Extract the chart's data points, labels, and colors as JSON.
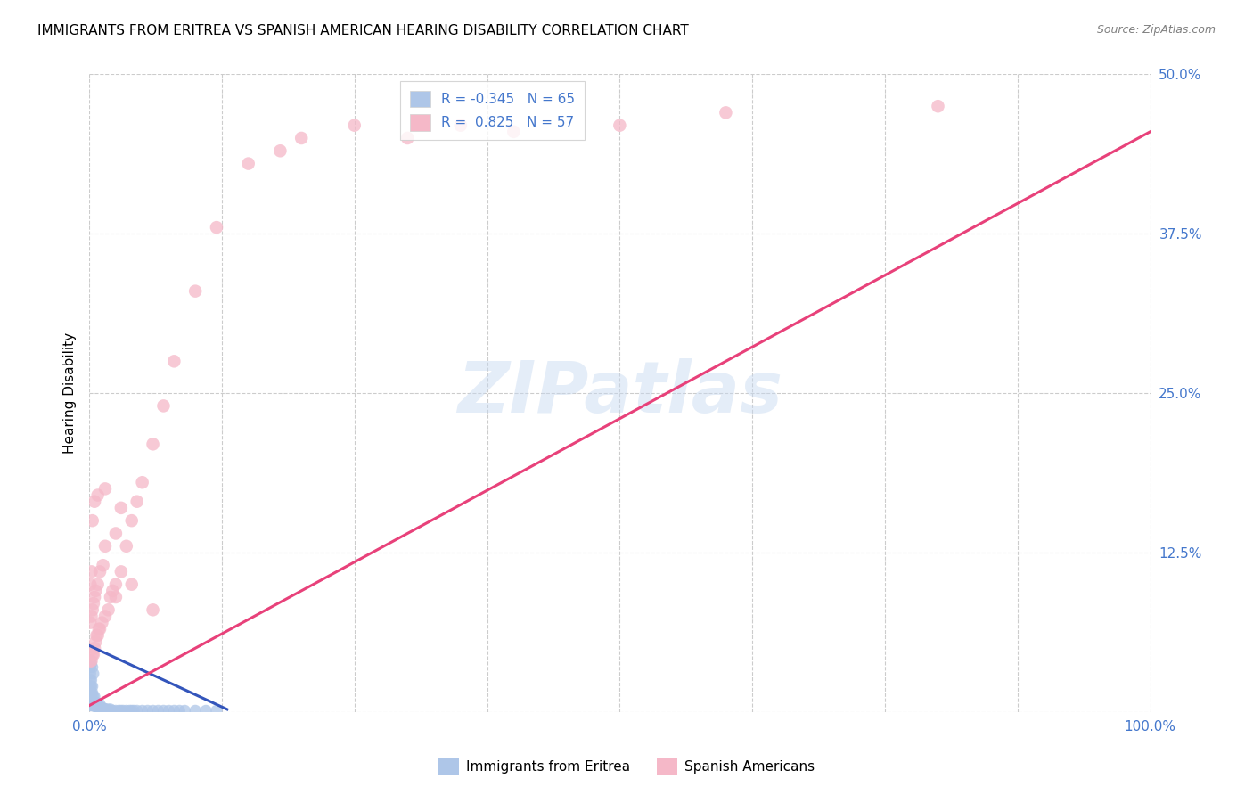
{
  "title": "IMMIGRANTS FROM ERITREA VS SPANISH AMERICAN HEARING DISABILITY CORRELATION CHART",
  "source": "Source: ZipAtlas.com",
  "ylabel": "Hearing Disability",
  "xlim": [
    0.0,
    1.0
  ],
  "ylim": [
    0.0,
    0.5
  ],
  "xticks": [
    0.0,
    0.125,
    0.25,
    0.375,
    0.5,
    0.625,
    0.75,
    0.875,
    1.0
  ],
  "xticklabels": [
    "0.0%",
    "",
    "",
    "",
    "",
    "",
    "",
    "",
    "100.0%"
  ],
  "yticks": [
    0.0,
    0.125,
    0.25,
    0.375,
    0.5
  ],
  "yticklabels": [
    "",
    "12.5%",
    "25.0%",
    "37.5%",
    "50.0%"
  ],
  "legend_entries": [
    {
      "label": "R = -0.345   N = 65",
      "color": "#aec6e8"
    },
    {
      "label": "R =  0.825   N = 57",
      "color": "#f4a7b9"
    }
  ],
  "blue_dot_color": "#aec6e8",
  "pink_dot_color": "#f5b8c8",
  "blue_line_color": "#3355bb",
  "pink_line_color": "#e8417a",
  "watermark_text": "ZIPatlas",
  "background_color": "#ffffff",
  "grid_color": "#cccccc",
  "title_fontsize": 11,
  "axis_label_color": "#4477cc",
  "blue_scatter": {
    "x": [
      0.001,
      0.001,
      0.001,
      0.001,
      0.001,
      0.001,
      0.002,
      0.002,
      0.002,
      0.002,
      0.002,
      0.003,
      0.003,
      0.003,
      0.003,
      0.004,
      0.004,
      0.004,
      0.005,
      0.005,
      0.005,
      0.006,
      0.006,
      0.007,
      0.007,
      0.008,
      0.008,
      0.009,
      0.01,
      0.01,
      0.011,
      0.012,
      0.013,
      0.014,
      0.015,
      0.016,
      0.018,
      0.02,
      0.022,
      0.025,
      0.028,
      0.03,
      0.032,
      0.035,
      0.038,
      0.04,
      0.042,
      0.045,
      0.05,
      0.055,
      0.06,
      0.065,
      0.07,
      0.075,
      0.08,
      0.085,
      0.09,
      0.1,
      0.11,
      0.12,
      0.001,
      0.001,
      0.002,
      0.003,
      0.004
    ],
    "y": [
      0.005,
      0.01,
      0.015,
      0.02,
      0.025,
      0.03,
      0.005,
      0.01,
      0.015,
      0.02,
      0.025,
      0.005,
      0.01,
      0.015,
      0.02,
      0.005,
      0.008,
      0.012,
      0.005,
      0.008,
      0.012,
      0.004,
      0.007,
      0.004,
      0.007,
      0.004,
      0.006,
      0.004,
      0.003,
      0.006,
      0.003,
      0.003,
      0.003,
      0.002,
      0.002,
      0.002,
      0.002,
      0.002,
      0.001,
      0.001,
      0.001,
      0.001,
      0.001,
      0.001,
      0.001,
      0.001,
      0.001,
      0.001,
      0.001,
      0.001,
      0.001,
      0.001,
      0.001,
      0.001,
      0.001,
      0.001,
      0.001,
      0.001,
      0.001,
      0.001,
      0.035,
      0.04,
      0.038,
      0.035,
      0.03
    ]
  },
  "pink_scatter": {
    "x": [
      0.001,
      0.001,
      0.001,
      0.002,
      0.002,
      0.002,
      0.003,
      0.003,
      0.004,
      0.004,
      0.005,
      0.005,
      0.006,
      0.006,
      0.007,
      0.008,
      0.008,
      0.009,
      0.01,
      0.01,
      0.012,
      0.013,
      0.015,
      0.015,
      0.018,
      0.02,
      0.022,
      0.025,
      0.025,
      0.03,
      0.03,
      0.035,
      0.04,
      0.045,
      0.05,
      0.06,
      0.07,
      0.08,
      0.1,
      0.12,
      0.15,
      0.18,
      0.2,
      0.25,
      0.3,
      0.35,
      0.4,
      0.5,
      0.6,
      0.8,
      0.003,
      0.005,
      0.008,
      0.015,
      0.025,
      0.04,
      0.06
    ],
    "y": [
      0.04,
      0.07,
      0.1,
      0.04,
      0.075,
      0.11,
      0.045,
      0.08,
      0.045,
      0.085,
      0.05,
      0.09,
      0.055,
      0.095,
      0.06,
      0.06,
      0.1,
      0.065,
      0.065,
      0.11,
      0.07,
      0.115,
      0.075,
      0.13,
      0.08,
      0.09,
      0.095,
      0.1,
      0.14,
      0.11,
      0.16,
      0.13,
      0.15,
      0.165,
      0.18,
      0.21,
      0.24,
      0.275,
      0.33,
      0.38,
      0.43,
      0.44,
      0.45,
      0.46,
      0.45,
      0.46,
      0.455,
      0.46,
      0.47,
      0.475,
      0.15,
      0.165,
      0.17,
      0.175,
      0.09,
      0.1,
      0.08
    ]
  },
  "blue_line": {
    "x0": 0.0,
    "x1": 0.13,
    "y0": 0.052,
    "y1": 0.002
  },
  "pink_line": {
    "x0": 0.0,
    "x1": 1.0,
    "y0": 0.005,
    "y1": 0.455
  }
}
